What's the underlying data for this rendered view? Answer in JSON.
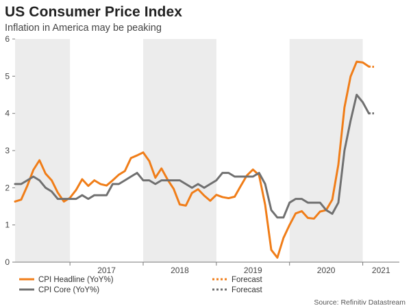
{
  "chart_data": {
    "type": "line",
    "title": "US Consumer Price Index",
    "subtitle": "Inflation in America may be peaking",
    "ylim": [
      0,
      6
    ],
    "y_ticks": [
      "0",
      "1",
      "2",
      "3",
      "4",
      "5",
      "6"
    ],
    "xlim": [
      "2016-04",
      "2021-07"
    ],
    "x_tick_labels": [
      "2017",
      "2018",
      "2019",
      "2020",
      "2021"
    ],
    "shaded_years": [
      "2016",
      "2018",
      "2020"
    ],
    "grid": false,
    "series": [
      {
        "name": "CPI Headline (YoY%)",
        "color": "#f07d18",
        "style": "solid",
        "points": [
          [
            "2016-04",
            1.63
          ],
          [
            "2016-05",
            1.68
          ],
          [
            "2016-06",
            2.05
          ],
          [
            "2016-07",
            2.48
          ],
          [
            "2016-08",
            2.74
          ],
          [
            "2016-09",
            2.38
          ],
          [
            "2016-10",
            2.2
          ],
          [
            "2016-11",
            1.87
          ],
          [
            "2016-12",
            1.63
          ],
          [
            "2017-01",
            1.73
          ],
          [
            "2017-02",
            1.94
          ],
          [
            "2017-03",
            2.23
          ],
          [
            "2017-04",
            2.05
          ],
          [
            "2017-05",
            2.2
          ],
          [
            "2017-06",
            2.1
          ],
          [
            "2017-07",
            2.06
          ],
          [
            "2017-08",
            2.2
          ],
          [
            "2017-09",
            2.35
          ],
          [
            "2017-10",
            2.45
          ],
          [
            "2017-11",
            2.8
          ],
          [
            "2017-12",
            2.87
          ],
          [
            "2018-01",
            2.95
          ],
          [
            "2018-02",
            2.72
          ],
          [
            "2018-03",
            2.27
          ],
          [
            "2018-04",
            2.52
          ],
          [
            "2018-05",
            2.22
          ],
          [
            "2018-06",
            1.97
          ],
          [
            "2018-07",
            1.55
          ],
          [
            "2018-08",
            1.52
          ],
          [
            "2018-09",
            1.86
          ],
          [
            "2018-10",
            1.96
          ],
          [
            "2018-11",
            1.79
          ],
          [
            "2018-12",
            1.65
          ],
          [
            "2019-01",
            1.81
          ],
          [
            "2019-02",
            1.75
          ],
          [
            "2019-03",
            1.72
          ],
          [
            "2019-04",
            1.76
          ],
          [
            "2019-05",
            2.05
          ],
          [
            "2019-06",
            2.33
          ],
          [
            "2019-07",
            2.49
          ],
          [
            "2019-08",
            2.34
          ],
          [
            "2019-09",
            1.54
          ],
          [
            "2019-10",
            0.33
          ],
          [
            "2019-11",
            0.12
          ],
          [
            "2019-12",
            0.65
          ],
          [
            "2020-01",
            1.0
          ],
          [
            "2020-02",
            1.31
          ],
          [
            "2020-03",
            1.37
          ],
          [
            "2020-04",
            1.19
          ],
          [
            "2020-05",
            1.17
          ],
          [
            "2020-06",
            1.36
          ],
          [
            "2020-07",
            1.4
          ],
          [
            "2020-08",
            1.68
          ],
          [
            "2020-09",
            2.62
          ],
          [
            "2020-10",
            4.16
          ],
          [
            "2020-11",
            4.99
          ],
          [
            "2020-12",
            5.39
          ],
          [
            "2021-01",
            5.37
          ],
          [
            "2021-02",
            5.26
          ]
        ]
      },
      {
        "name": "Forecast",
        "color": "#f07d18",
        "style": "dotted",
        "points": [
          [
            "2021-02",
            5.26
          ],
          [
            "2021-03",
            5.25
          ]
        ]
      },
      {
        "name": "CPI Core (YoY%)",
        "color": "#707070",
        "style": "solid",
        "points": [
          [
            "2016-04",
            2.1
          ],
          [
            "2016-05",
            2.1
          ],
          [
            "2016-06",
            2.2
          ],
          [
            "2016-07",
            2.3
          ],
          [
            "2016-08",
            2.2
          ],
          [
            "2016-09",
            2.0
          ],
          [
            "2016-10",
            1.9
          ],
          [
            "2016-11",
            1.7
          ],
          [
            "2016-12",
            1.7
          ],
          [
            "2017-01",
            1.7
          ],
          [
            "2017-02",
            1.7
          ],
          [
            "2017-03",
            1.8
          ],
          [
            "2017-04",
            1.7
          ],
          [
            "2017-05",
            1.8
          ],
          [
            "2017-06",
            1.8
          ],
          [
            "2017-07",
            1.8
          ],
          [
            "2017-08",
            2.1
          ],
          [
            "2017-09",
            2.1
          ],
          [
            "2017-10",
            2.2
          ],
          [
            "2017-11",
            2.3
          ],
          [
            "2017-12",
            2.4
          ],
          [
            "2018-01",
            2.2
          ],
          [
            "2018-02",
            2.2
          ],
          [
            "2018-03",
            2.1
          ],
          [
            "2018-04",
            2.2
          ],
          [
            "2018-05",
            2.2
          ],
          [
            "2018-06",
            2.2
          ],
          [
            "2018-07",
            2.2
          ],
          [
            "2018-08",
            2.1
          ],
          [
            "2018-09",
            2.0
          ],
          [
            "2018-10",
            2.1
          ],
          [
            "2018-11",
            2.0
          ],
          [
            "2018-12",
            2.1
          ],
          [
            "2019-01",
            2.2
          ],
          [
            "2019-02",
            2.4
          ],
          [
            "2019-03",
            2.4
          ],
          [
            "2019-04",
            2.3
          ],
          [
            "2019-05",
            2.3
          ],
          [
            "2019-06",
            2.3
          ],
          [
            "2019-07",
            2.3
          ],
          [
            "2019-08",
            2.4
          ],
          [
            "2019-09",
            2.1
          ],
          [
            "2019-10",
            1.4
          ],
          [
            "2019-11",
            1.2
          ],
          [
            "2019-12",
            1.2
          ],
          [
            "2020-01",
            1.6
          ],
          [
            "2020-02",
            1.7
          ],
          [
            "2020-03",
            1.7
          ],
          [
            "2020-04",
            1.6
          ],
          [
            "2020-05",
            1.6
          ],
          [
            "2020-06",
            1.6
          ],
          [
            "2020-07",
            1.4
          ],
          [
            "2020-08",
            1.3
          ],
          [
            "2020-09",
            1.6
          ],
          [
            "2020-10",
            3.0
          ],
          [
            "2020-11",
            3.8
          ],
          [
            "2020-12",
            4.5
          ],
          [
            "2021-01",
            4.3
          ],
          [
            "2021-02",
            4.0
          ]
        ]
      },
      {
        "name": "Forecast",
        "color": "#707070",
        "style": "dotted",
        "points": [
          [
            "2021-02",
            4.0
          ],
          [
            "2021-03",
            4.0
          ]
        ]
      }
    ],
    "legend": {
      "placement": "bottom-left",
      "entries": [
        {
          "label": "CPI Headline (YoY%)",
          "color": "#f07d18",
          "style": "solid"
        },
        {
          "label": "Forecast",
          "color": "#f07d18",
          "style": "dotted"
        },
        {
          "label": "CPI Core (YoY%)",
          "color": "#707070",
          "style": "solid"
        },
        {
          "label": "Forecast",
          "color": "#707070",
          "style": "dotted"
        }
      ]
    },
    "source": "Source: Refinitiv Datastream",
    "colors": {
      "shade": "#ececec",
      "axis": "#777777",
      "text": "#444444"
    }
  }
}
